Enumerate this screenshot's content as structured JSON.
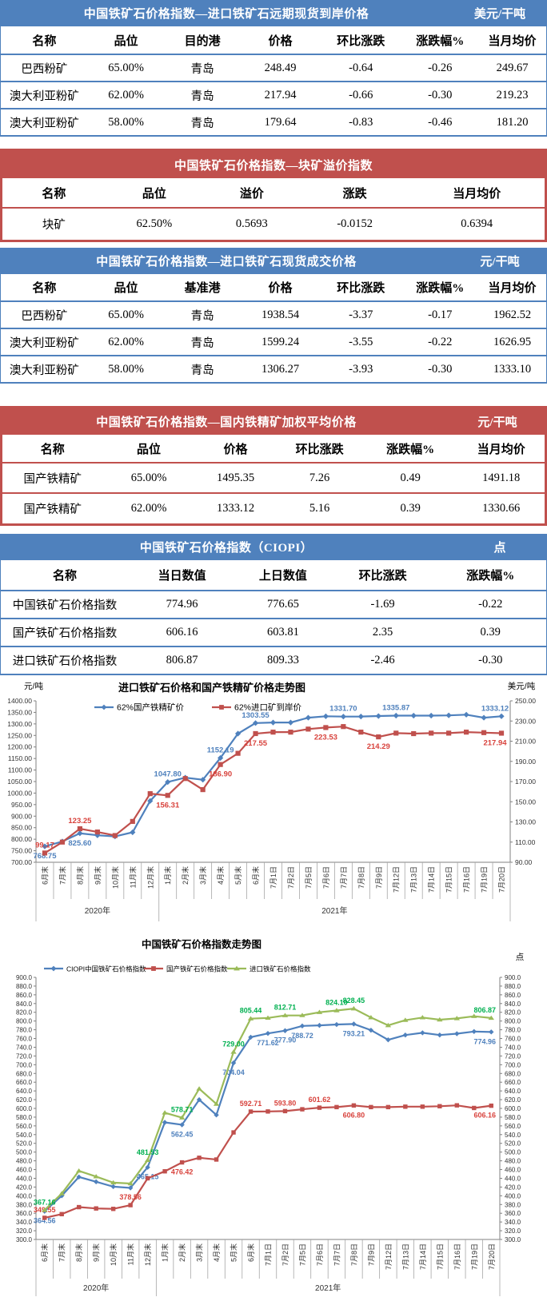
{
  "tables": [
    {
      "theme": "blue",
      "title": "中国铁矿石价格指数—进口铁矿石远期现货到岸价格",
      "unit": "美元/干吨",
      "headers": [
        "名称",
        "品位",
        "目的港",
        "价格",
        "环比涨跌",
        "涨跌幅%",
        "当月均价"
      ],
      "rows": [
        [
          "巴西粉矿",
          "65.00%",
          "青岛",
          "248.49",
          "-0.64",
          "-0.26",
          "249.67"
        ],
        [
          "澳大利亚粉矿",
          "62.00%",
          "青岛",
          "217.94",
          "-0.66",
          "-0.30",
          "219.23"
        ],
        [
          "澳大利亚粉矿",
          "58.00%",
          "青岛",
          "179.64",
          "-0.83",
          "-0.46",
          "181.20"
        ]
      ]
    },
    {
      "theme": "red",
      "title": "中国铁矿石价格指数—块矿溢价指数",
      "unit": "",
      "headers": [
        "名称",
        "品位",
        "溢价",
        "涨跌",
        "当月均价"
      ],
      "rows": [
        [
          "块矿",
          "62.50%",
          "0.5693",
          "-0.0152",
          "0.6394"
        ]
      ]
    },
    {
      "theme": "blue",
      "title": "中国铁矿石价格指数—进口铁矿石现货成交价格",
      "unit": "元/干吨",
      "headers": [
        "名称",
        "品位",
        "基准港",
        "价格",
        "环比涨跌",
        "涨跌幅%",
        "当月均价"
      ],
      "rows": [
        [
          "巴西粉矿",
          "65.00%",
          "青岛",
          "1938.54",
          "-3.37",
          "-0.17",
          "1962.52"
        ],
        [
          "澳大利亚粉矿",
          "62.00%",
          "青岛",
          "1599.24",
          "-3.55",
          "-0.22",
          "1626.95"
        ],
        [
          "澳大利亚粉矿",
          "58.00%",
          "青岛",
          "1306.27",
          "-3.93",
          "-0.30",
          "1333.10"
        ]
      ]
    },
    {
      "theme": "red",
      "title": "中国铁矿石价格指数—国内铁精矿加权平均价格",
      "unit": "元/干吨",
      "headers": [
        "名称",
        "品位",
        "价格",
        "环比涨跌",
        "涨跌幅%",
        "当月均价"
      ],
      "rows": [
        [
          "国产铁精矿",
          "65.00%",
          "1495.35",
          "7.26",
          "0.49",
          "1491.18"
        ],
        [
          "国产铁精矿",
          "62.00%",
          "1333.12",
          "5.16",
          "0.39",
          "1330.66"
        ]
      ]
    },
    {
      "theme": "blue",
      "title": "中国铁矿石价格指数（CIOPI）",
      "unit": "点",
      "headers": [
        "名称",
        "当日数值",
        "上日数值",
        "环比涨跌",
        "涨跌幅%"
      ],
      "rows": [
        [
          "中国铁矿石价格指数",
          "774.96",
          "776.65",
          "-1.69",
          "-0.22"
        ],
        [
          "国产铁矿石价格指数",
          "606.16",
          "603.81",
          "2.35",
          "0.39"
        ],
        [
          "进口铁矿石价格指数",
          "806.87",
          "809.33",
          "-2.46",
          "-0.30"
        ]
      ]
    }
  ],
  "chart_data": [
    {
      "type": "line",
      "title": "进口铁矿石价格和国产铁精矿价格走势图",
      "left_unit": "元/吨",
      "right_unit": "美元/吨",
      "left_axis": {
        "min": 700,
        "max": 1400,
        "step": 50,
        "decimals": 2
      },
      "right_axis": {
        "min": 90,
        "max": 250,
        "step": 20,
        "decimals": 2
      },
      "categories": [
        "6月末",
        "7月末",
        "8月末",
        "9月末",
        "10月末",
        "11月末",
        "12月末",
        "1月末",
        "2月末",
        "3月末",
        "4月末",
        "5月末",
        "6月末",
        "7月1日",
        "7月2日",
        "7月5日",
        "7月6日",
        "7月7日",
        "7月8日",
        "7月9日",
        "7月12日",
        "7月13日",
        "7月14日",
        "7月15日",
        "7月16日",
        "7月19日",
        "7月20日"
      ],
      "year_groups": [
        {
          "label": "2020年",
          "span": 7
        },
        {
          "label": "2021年",
          "span": 20
        }
      ],
      "grid": false,
      "legend_position": "top",
      "series": [
        {
          "name": "62%国产铁精矿价",
          "axis": "left",
          "color": "#4F81BD",
          "label_color": "#4F81BD",
          "marker": "diamond",
          "values": [
            768.75,
            790,
            825.6,
            817,
            812,
            830,
            966,
            1047.8,
            1067,
            1058,
            1152.19,
            1258,
            1303.55,
            1306,
            1306,
            1327,
            1333,
            1331.7,
            1332,
            1334,
            1335.87,
            1336,
            1336,
            1337,
            1340,
            1327,
            1333.12
          ],
          "labels": [
            {
              "i": 0,
              "t": "768.75",
              "pos": "below"
            },
            {
              "i": 2,
              "t": "825.60",
              "pos": "below"
            },
            {
              "i": 7,
              "t": "1047.80",
              "pos": "above"
            },
            {
              "i": 10,
              "t": "1152.19",
              "pos": "above"
            },
            {
              "i": 12,
              "t": "1303.55",
              "pos": "above"
            },
            {
              "i": 17,
              "t": "1331.70",
              "pos": "above"
            },
            {
              "i": 20,
              "t": "1335.87",
              "pos": "above"
            },
            {
              "i": 26,
              "t": "1333.12",
              "pos": "above"
            }
          ]
        },
        {
          "name": "62%进口矿到岸价",
          "axis": "right",
          "color": "#C0504D",
          "label_color": "#D8423C",
          "marker": "square",
          "values": [
            99.17,
            110,
            123.25,
            120,
            116.5,
            130.5,
            158,
            156.31,
            173,
            162,
            186.9,
            198,
            217.55,
            219,
            219,
            222,
            223.53,
            224.5,
            219,
            214.29,
            218,
            217.5,
            218,
            218,
            219,
            218.5,
            217.94
          ],
          "labels": [
            {
              "i": 0,
              "t": "99.17",
              "pos": "above"
            },
            {
              "i": 2,
              "t": "123.25",
              "pos": "above"
            },
            {
              "i": 7,
              "t": "156.31",
              "pos": "below"
            },
            {
              "i": 10,
              "t": "186.90",
              "pos": "below"
            },
            {
              "i": 12,
              "t": "217.55",
              "pos": "below"
            },
            {
              "i": 16,
              "t": "223.53",
              "pos": "below"
            },
            {
              "i": 19,
              "t": "214.29",
              "pos": "below"
            },
            {
              "i": 26,
              "t": "217.94",
              "pos": "below"
            }
          ]
        }
      ]
    },
    {
      "type": "line",
      "title": "中国铁矿石价格指数走势图",
      "left_unit": "",
      "right_unit": "点",
      "left_axis": {
        "min": 300,
        "max": 900,
        "step": 20,
        "decimals": 1
      },
      "right_axis": {
        "min": 300,
        "max": 900,
        "step": 20,
        "decimals": 1
      },
      "categories": [
        "6月末",
        "7月末",
        "8月末",
        "9月末",
        "10月末",
        "11月末",
        "12月末",
        "1月末",
        "2月末",
        "3月末",
        "4月末",
        "5月末",
        "6月末",
        "7月1日",
        "7月2日",
        "7月5日",
        "7月6日",
        "7月7日",
        "7月8日",
        "7月9日",
        "7月12日",
        "7月13日",
        "7月14日",
        "7月15日",
        "7月16日",
        "7月19日",
        "7月20日"
      ],
      "year_groups": [
        {
          "label": "2020年",
          "span": 7
        },
        {
          "label": "2021年",
          "span": 20
        }
      ],
      "grid": false,
      "legend_position": "top",
      "series": [
        {
          "name": "CIOPI中国铁矿石价格指数",
          "axis": "left",
          "color": "#4F81BD",
          "label_color": "#4F81BD",
          "marker": "diamond",
          "values": [
            364.56,
            400,
            443,
            432,
            421,
            418,
            465.15,
            568,
            562.45,
            620,
            585,
            704.04,
            763,
            771.62,
            777.9,
            788.72,
            790,
            792,
            793.21,
            779,
            757,
            768,
            773,
            768,
            771,
            776,
            774.96
          ],
          "labels": [
            {
              "i": 0,
              "t": "364.56",
              "pos": "below"
            },
            {
              "i": 6,
              "t": "465.15",
              "pos": "below"
            },
            {
              "i": 8,
              "t": "562.45",
              "pos": "below"
            },
            {
              "i": 11,
              "t": "704.04",
              "pos": "below"
            },
            {
              "i": 13,
              "t": "771.62",
              "pos": "below"
            },
            {
              "i": 14,
              "t": "777.90",
              "pos": "below"
            },
            {
              "i": 15,
              "t": "788.72",
              "pos": "below"
            },
            {
              "i": 18,
              "t": "793.21",
              "pos": "below"
            },
            {
              "i": 26,
              "t": "774.96",
              "pos": "below"
            }
          ]
        },
        {
          "name": "国产铁矿石价格指数",
          "axis": "left",
          "color": "#C0504D",
          "label_color": "#D8423C",
          "marker": "square",
          "values": [
            349.55,
            358,
            374,
            371,
            370,
            378.56,
            440,
            456,
            476.42,
            487,
            483,
            545,
            592.71,
            593,
            593.8,
            598,
            601.62,
            603,
            606.8,
            603,
            603,
            604,
            604,
            605,
            607,
            601,
            606.16
          ],
          "labels": [
            {
              "i": 0,
              "t": "349.55",
              "pos": "above"
            },
            {
              "i": 5,
              "t": "378.56",
              "pos": "above"
            },
            {
              "i": 8,
              "t": "476.42",
              "pos": "below"
            },
            {
              "i": 12,
              "t": "592.71",
              "pos": "above"
            },
            {
              "i": 14,
              "t": "593.80",
              "pos": "above"
            },
            {
              "i": 16,
              "t": "601.62",
              "pos": "above"
            },
            {
              "i": 18,
              "t": "606.80",
              "pos": "below"
            },
            {
              "i": 26,
              "t": "606.16",
              "pos": "below"
            }
          ]
        },
        {
          "name": "进口铁矿石价格指数",
          "axis": "left",
          "color": "#9BBB59",
          "label_color": "#00B050",
          "marker": "triangle",
          "values": [
            367.16,
            405,
            457,
            444,
            430,
            428,
            481.53,
            590,
            578.71,
            645,
            610,
            729.0,
            805.44,
            807,
            812.71,
            813,
            820,
            824.1,
            828.45,
            808,
            790,
            802,
            808,
            803,
            806,
            811,
            806.87
          ],
          "labels": [
            {
              "i": 0,
              "t": "367.16",
              "pos": "above"
            },
            {
              "i": 6,
              "t": "481.53",
              "pos": "above"
            },
            {
              "i": 8,
              "t": "578.71",
              "pos": "above"
            },
            {
              "i": 11,
              "t": "729.00",
              "pos": "above"
            },
            {
              "i": 12,
              "t": "805.44",
              "pos": "above"
            },
            {
              "i": 14,
              "t": "812.71",
              "pos": "above"
            },
            {
              "i": 17,
              "t": "824.10",
              "pos": "above"
            },
            {
              "i": 18,
              "t": "828.45",
              "pos": "above"
            },
            {
              "i": 26,
              "t": "806.87",
              "pos": "above"
            }
          ]
        }
      ]
    }
  ],
  "colors": {
    "blue_theme": "#4F81BD",
    "red_theme": "#C0504D",
    "green_series": "#9BBB59",
    "axis_line": "#808080"
  }
}
